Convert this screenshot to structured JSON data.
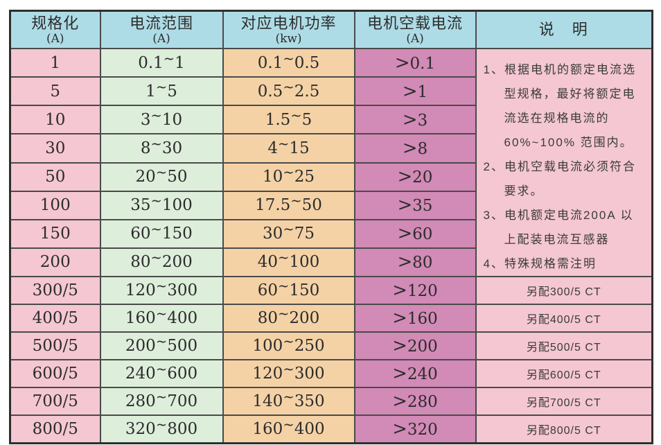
{
  "table": {
    "headers": [
      {
        "title": "规格化",
        "unit": "(A)"
      },
      {
        "title": "电流范围",
        "unit": "(A)"
      },
      {
        "title": "对应电机功率",
        "unit": "(kw)"
      },
      {
        "title": "电机空载电流",
        "unit": "(A)"
      },
      {
        "title": "说　明",
        "unit": ""
      }
    ],
    "rows": [
      {
        "spec": "1",
        "current_range": "0.1~1",
        "motor_power": "0.1~0.5",
        "no_load_current": ">0.1",
        "note": ""
      },
      {
        "spec": "5",
        "current_range": "1~5",
        "motor_power": "0.5~2.5",
        "no_load_current": ">1",
        "note": ""
      },
      {
        "spec": "10",
        "current_range": "3~10",
        "motor_power": "1.5~5",
        "no_load_current": ">3",
        "note": ""
      },
      {
        "spec": "30",
        "current_range": "8~30",
        "motor_power": "4~15",
        "no_load_current": ">8",
        "note": ""
      },
      {
        "spec": "50",
        "current_range": "20~50",
        "motor_power": "10~25",
        "no_load_current": ">20",
        "note": ""
      },
      {
        "spec": "100",
        "current_range": "35~100",
        "motor_power": "17.5~50",
        "no_load_current": ">35",
        "note": ""
      },
      {
        "spec": "150",
        "current_range": "60~150",
        "motor_power": "30~75",
        "no_load_current": ">60",
        "note": ""
      },
      {
        "spec": "200",
        "current_range": "80~200",
        "motor_power": "40~100",
        "no_load_current": ">80",
        "note": ""
      },
      {
        "spec": "300/5",
        "current_range": "120~300",
        "motor_power": "60~150",
        "no_load_current": ">120",
        "note": "另配300/5 CT"
      },
      {
        "spec": "400/5",
        "current_range": "160~400",
        "motor_power": "80~200",
        "no_load_current": ">160",
        "note": "另配400/5 CT"
      },
      {
        "spec": "500/5",
        "current_range": "200~500",
        "motor_power": "100~250",
        "no_load_current": ">200",
        "note": "另配500/5 CT"
      },
      {
        "spec": "600/5",
        "current_range": "240~600",
        "motor_power": "120~300",
        "no_load_current": ">240",
        "note": "另配600/5 CT"
      },
      {
        "spec": "700/5",
        "current_range": "280~700",
        "motor_power": "140~350",
        "no_load_current": ">280",
        "note": "另配700/5 CT"
      },
      {
        "spec": "800/5",
        "current_range": "320~800",
        "motor_power": "160~400",
        "no_load_current": ">320",
        "note": "另配800/5 CT"
      }
    ],
    "notes": [
      "1、根据电机的额定电流选型规格，最好将额定电流选在规格电流的60%~100%  范围内。",
      "2、电机空载电流必须符合要求。",
      "3、电机额定电流200A 以上配装电流互感器",
      "4、特殊规格需注明"
    ],
    "notes_span_rows": 8
  },
  "colors": {
    "header_bg": "#aedce6",
    "spec_col_bg": "#f4c7d2",
    "range_col_bg": "#ddeedb",
    "power_col_bg": "#f4d2a6",
    "no_load_col_bg": "#d28ab6",
    "notes_bg": "#f4c7d2",
    "border": "#4a4a4a"
  }
}
